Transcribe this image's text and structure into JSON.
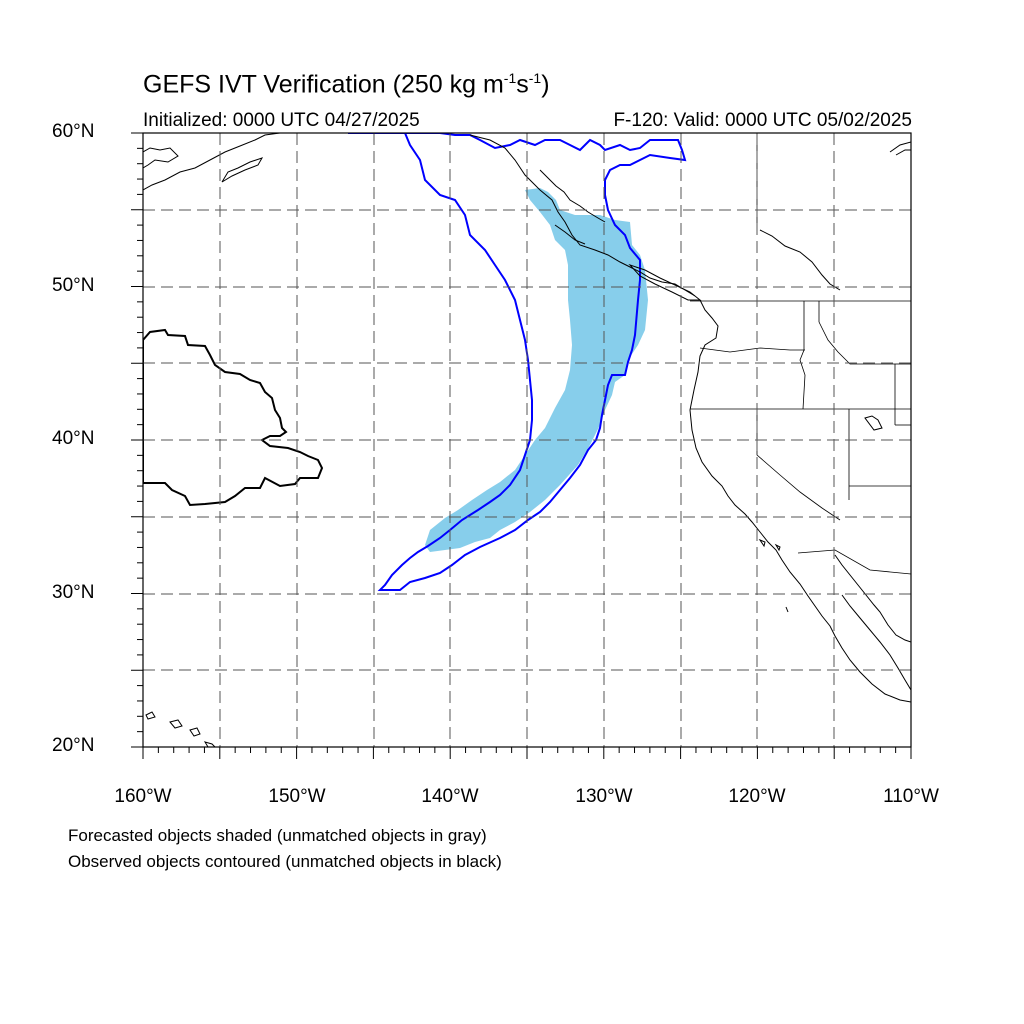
{
  "title": {
    "main": "GEFS IVT Verification (250 kg m",
    "exp1": "-1",
    "mid": "s",
    "exp2": "-1",
    "close": ")"
  },
  "subtitle": {
    "left": "Initialized: 0000 UTC 04/27/2025",
    "right": "F-120: Valid: 0000 UTC 05/02/2025"
  },
  "axes": {
    "lat_labels": [
      "60°N",
      "50°N",
      "40°N",
      "30°N",
      "20°N"
    ],
    "lon_labels": [
      "160°W",
      "150°W",
      "140°W",
      "130°W",
      "120°W",
      "110°W"
    ],
    "lat_range": [
      20,
      60
    ],
    "lon_range": [
      -160,
      -110
    ],
    "grid": "dashed, every 5 degrees"
  },
  "notes": {
    "line1": "Forecasted objects shaded (unmatched objects in gray)",
    "line2": "Observed objects contoured (unmatched objects in black)"
  },
  "colors": {
    "forecast_fill": "#87ceeb",
    "observed_contour": "#0000ff",
    "unmatched_contour": "#000000",
    "gridline": "#555555"
  }
}
